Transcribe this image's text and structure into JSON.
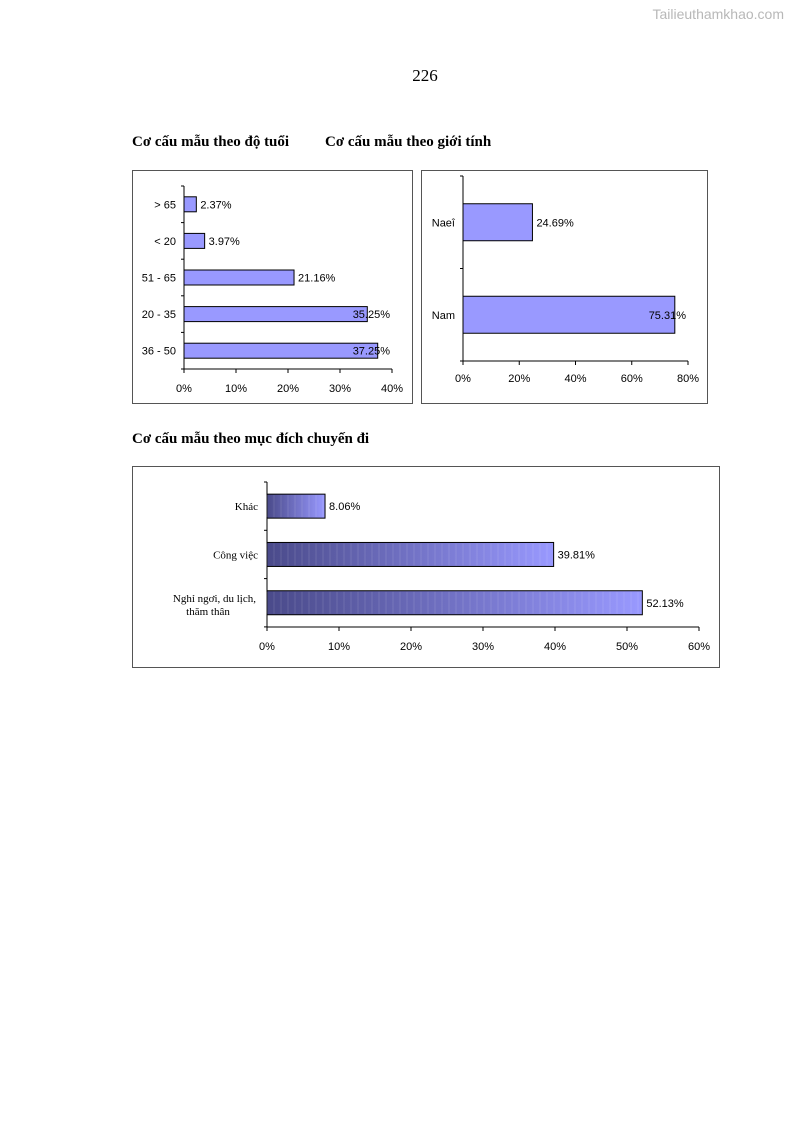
{
  "watermark": "Tailieuthamkhao.com",
  "page_number": "226",
  "titles": {
    "age": "Cơ cấu mẫu theo độ tuổi",
    "gender": "Cơ cấu mẫu theo giới tính",
    "purpose": "Cơ cấu mẫu theo mục đích chuyến đi"
  },
  "colors": {
    "bar_fill": "#9999ff",
    "bar_dark": "#4a4a8a",
    "bar_stroke": "#000000",
    "frame": "#555555"
  },
  "chart_data": [
    {
      "id": "age",
      "type": "bar",
      "orientation": "horizontal",
      "categories": [
        "> 65",
        "< 20",
        "51 - 65",
        "20 - 35",
        "36 - 50"
      ],
      "values": [
        2.37,
        3.97,
        21.16,
        35.25,
        37.25
      ],
      "data_labels": [
        "2.37%",
        "3.97%",
        "21.16%",
        "35.25%",
        "37.25%"
      ],
      "xlim": [
        0,
        40
      ],
      "xticks": [
        "0%",
        "10%",
        "20%",
        "30%",
        "40%"
      ],
      "grid": false,
      "legend": "none"
    },
    {
      "id": "gender",
      "type": "bar",
      "orientation": "horizontal",
      "categories": [
        "Naeî",
        "Nam"
      ],
      "values": [
        24.69,
        75.31
      ],
      "data_labels": [
        "24.69%",
        "75.31%"
      ],
      "xlim": [
        0,
        80
      ],
      "xticks": [
        "0%",
        "20%",
        "40%",
        "60%",
        "80%"
      ],
      "grid": false,
      "legend": "none"
    },
    {
      "id": "purpose",
      "type": "bar",
      "orientation": "horizontal",
      "categories": [
        "Khác",
        "Công việc",
        "Nghỉ ngơi, du lịch, thăm thân"
      ],
      "values": [
        8.06,
        39.81,
        52.13
      ],
      "data_labels": [
        "8.06%",
        "39.81%",
        "52.13%"
      ],
      "xlim": [
        0,
        60
      ],
      "xticks": [
        "0%",
        "10%",
        "20%",
        "30%",
        "40%",
        "50%",
        "60%"
      ],
      "grid": false,
      "legend": "none"
    }
  ]
}
